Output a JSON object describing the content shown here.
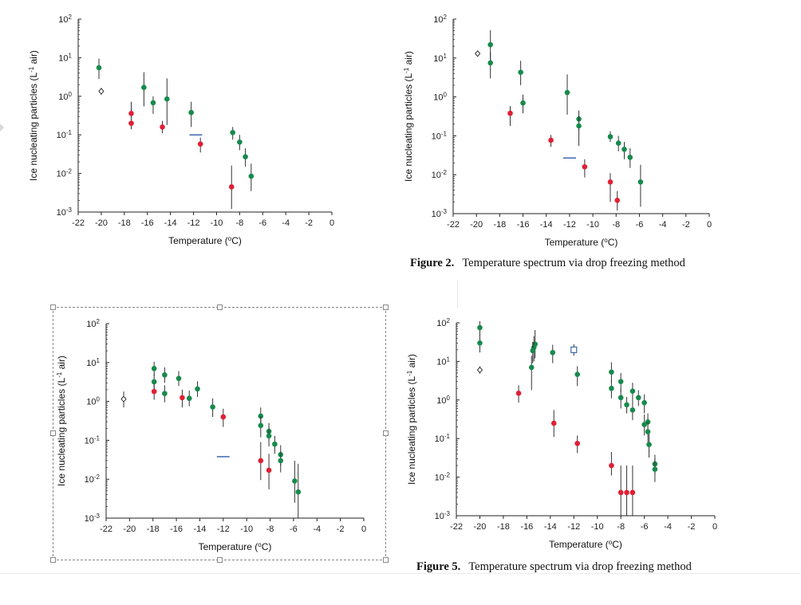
{
  "captions": {
    "fig2": {
      "num": "Figure 2.",
      "text": "Temperature spectrum via drop freezing method"
    },
    "fig5": {
      "num": "Figure 5.",
      "text": "Temperature spectrum via drop freezing method"
    }
  },
  "colors": {
    "green": "#178a4c",
    "red": "#e01f34",
    "blue": "#2b5aa8",
    "open": "#333333",
    "axis": "#222222"
  },
  "chart_data": [
    {
      "type": "scatter",
      "id": "chart-top-left",
      "xlabel": "Temperature (oC)",
      "ylabel": "Ice nucleating particles (L-1 air)",
      "xlim": [
        -22,
        0
      ],
      "ylim": [
        0.001,
        100
      ],
      "yscale": "log",
      "xticks": [
        -22,
        -20,
        -18,
        -16,
        -14,
        -12,
        -10,
        -8,
        -6,
        -4,
        -2,
        0
      ],
      "yticks": [
        {
          "exp": "2",
          "value": 100
        },
        {
          "exp": "1",
          "value": 10
        },
        {
          "exp": "0",
          "value": 1
        },
        {
          "exp": "-1",
          "value": 0.1
        },
        {
          "exp": "-2",
          "value": 0.01
        },
        {
          "exp": "-3",
          "value": 0.001
        }
      ],
      "series": [
        {
          "name": "green",
          "color": "green",
          "marker": "dot",
          "points": [
            {
              "x": -20.2,
              "y": 5.5,
              "lo": 2.8,
              "hi": 9.5
            },
            {
              "x": -16.3,
              "y": 1.7,
              "lo": 0.55,
              "hi": 4.2
            },
            {
              "x": -15.5,
              "y": 0.68,
              "lo": 0.35,
              "hi": 1.0
            },
            {
              "x": -14.3,
              "y": 0.85,
              "lo": 0.18,
              "hi": 2.9
            },
            {
              "x": -12.2,
              "y": 0.38,
              "lo": 0.16,
              "hi": 0.72
            },
            {
              "x": -8.6,
              "y": 0.115,
              "lo": 0.075,
              "hi": 0.16
            },
            {
              "x": -8.0,
              "y": 0.065,
              "lo": 0.04,
              "hi": 0.1
            },
            {
              "x": -7.5,
              "y": 0.027,
              "lo": 0.015,
              "hi": 0.045
            },
            {
              "x": -7.0,
              "y": 0.0085,
              "lo": 0.0035,
              "hi": 0.018
            }
          ]
        },
        {
          "name": "red",
          "color": "red",
          "marker": "dot",
          "points": [
            {
              "x": -17.4,
              "y": 0.36,
              "lo": 0.14,
              "hi": 0.72
            },
            {
              "x": -17.4,
              "y": 0.2,
              "lo": 0.14,
              "hi": 0.28
            },
            {
              "x": -14.7,
              "y": 0.16,
              "lo": 0.11,
              "hi": 0.23
            },
            {
              "x": -11.4,
              "y": 0.058,
              "lo": 0.035,
              "hi": 0.085
            },
            {
              "x": -8.7,
              "y": 0.0045,
              "lo": 0.0012,
              "hi": 0.016
            }
          ]
        },
        {
          "name": "open",
          "color": "open",
          "marker": "open-diamond",
          "points": [
            {
              "x": -20.0,
              "y": 1.35,
              "lo": 1.1,
              "hi": 1.65
            }
          ]
        },
        {
          "name": "blue",
          "color": "blue",
          "marker": "dash",
          "points": [
            {
              "x": -11.8,
              "y": 0.1
            }
          ]
        }
      ]
    },
    {
      "type": "scatter",
      "id": "chart-top-right",
      "xlabel": "Temperature (oC)",
      "ylabel": "Ice nucleating particles (L-1 air)",
      "xlim": [
        -22,
        0
      ],
      "ylim": [
        0.001,
        100
      ],
      "yscale": "log",
      "xticks": [
        -22,
        -20,
        -18,
        -16,
        -14,
        -12,
        -10,
        -8,
        -6,
        -4,
        -2,
        0
      ],
      "yticks": [
        {
          "exp": "2",
          "value": 100
        },
        {
          "exp": "1",
          "value": 10
        },
        {
          "exp": "0",
          "value": 1
        },
        {
          "exp": "-1",
          "value": 0.1
        },
        {
          "exp": "-2",
          "value": 0.01
        },
        {
          "exp": "-3",
          "value": 0.001
        }
      ],
      "series": [
        {
          "name": "green",
          "color": "green",
          "marker": "dot",
          "points": [
            {
              "x": -18.8,
              "y": 22,
              "lo": 8,
              "hi": 52
            },
            {
              "x": -18.8,
              "y": 7.5,
              "lo": 3.0,
              "hi": 14
            },
            {
              "x": -16.2,
              "y": 4.3,
              "lo": 2.0,
              "hi": 8.5
            },
            {
              "x": -16.0,
              "y": 0.7,
              "lo": 0.38,
              "hi": 1.15
            },
            {
              "x": -12.2,
              "y": 1.3,
              "lo": 0.35,
              "hi": 3.8
            },
            {
              "x": -11.2,
              "y": 0.27,
              "lo": 0.13,
              "hi": 0.45
            },
            {
              "x": -11.2,
              "y": 0.18,
              "lo": 0.055,
              "hi": 0.33
            },
            {
              "x": -8.5,
              "y": 0.095,
              "lo": 0.07,
              "hi": 0.13
            },
            {
              "x": -7.8,
              "y": 0.065,
              "lo": 0.04,
              "hi": 0.1
            },
            {
              "x": -7.3,
              "y": 0.045,
              "lo": 0.025,
              "hi": 0.07
            },
            {
              "x": -6.8,
              "y": 0.028,
              "lo": 0.015,
              "hi": 0.048
            },
            {
              "x": -5.9,
              "y": 0.0065,
              "lo": 0.0015,
              "hi": 0.018
            }
          ]
        },
        {
          "name": "red",
          "color": "red",
          "marker": "dot",
          "points": [
            {
              "x": -17.1,
              "y": 0.38,
              "lo": 0.18,
              "hi": 0.58
            },
            {
              "x": -13.6,
              "y": 0.077,
              "lo": 0.052,
              "hi": 0.105
            },
            {
              "x": -10.7,
              "y": 0.016,
              "lo": 0.0085,
              "hi": 0.025
            },
            {
              "x": -8.5,
              "y": 0.0065,
              "lo": 0.002,
              "hi": 0.011
            },
            {
              "x": -7.9,
              "y": 0.0022,
              "lo": 0.0012,
              "hi": 0.0038
            }
          ]
        },
        {
          "name": "open",
          "color": "open",
          "marker": "open-diamond",
          "points": [
            {
              "x": -19.9,
              "y": 13
            }
          ]
        },
        {
          "name": "blue",
          "color": "blue",
          "marker": "dash",
          "points": [
            {
              "x": -12.0,
              "y": 0.027
            }
          ]
        }
      ]
    },
    {
      "type": "scatter",
      "id": "chart-bottom-left",
      "xlabel": "Temperature (oC)",
      "ylabel": "Ice nucleating particles (L-1 air)",
      "xlim": [
        -22,
        0
      ],
      "ylim": [
        0.001,
        100
      ],
      "yscale": "log",
      "xticks": [
        -22,
        -20,
        -18,
        -16,
        -14,
        -12,
        -10,
        -8,
        -6,
        -4,
        -2,
        0
      ],
      "yticks": [
        {
          "exp": "2",
          "value": 100
        },
        {
          "exp": "1",
          "value": 10
        },
        {
          "exp": "0",
          "value": 1
        },
        {
          "exp": "-1",
          "value": 0.1
        },
        {
          "exp": "-2",
          "value": 0.01
        },
        {
          "exp": "-3",
          "value": 0.001
        }
      ],
      "series": [
        {
          "name": "green",
          "color": "green",
          "marker": "dot",
          "points": [
            {
              "x": -17.9,
              "y": 7.0,
              "lo": 4.5,
              "hi": 10.5
            },
            {
              "x": -17.9,
              "y": 3.2,
              "lo": 1.8,
              "hi": 5.0
            },
            {
              "x": -17.0,
              "y": 4.8,
              "lo": 3.0,
              "hi": 7.5
            },
            {
              "x": -17.0,
              "y": 1.6,
              "lo": 0.95,
              "hi": 2.6
            },
            {
              "x": -15.8,
              "y": 3.9,
              "lo": 2.5,
              "hi": 6.0
            },
            {
              "x": -14.9,
              "y": 1.2,
              "lo": 0.75,
              "hi": 1.9
            },
            {
              "x": -14.2,
              "y": 2.1,
              "lo": 1.3,
              "hi": 3.3
            },
            {
              "x": -12.9,
              "y": 0.72,
              "lo": 0.4,
              "hi": 1.2
            },
            {
              "x": -8.8,
              "y": 0.42,
              "lo": 0.25,
              "hi": 0.7
            },
            {
              "x": -8.8,
              "y": 0.24,
              "lo": 0.12,
              "hi": 0.42
            },
            {
              "x": -8.1,
              "y": 0.17,
              "lo": 0.1,
              "hi": 0.28
            },
            {
              "x": -8.1,
              "y": 0.13,
              "lo": 0.07,
              "hi": 0.22
            },
            {
              "x": -7.6,
              "y": 0.08,
              "lo": 0.045,
              "hi": 0.13
            },
            {
              "x": -7.1,
              "y": 0.043,
              "lo": 0.022,
              "hi": 0.075
            },
            {
              "x": -7.1,
              "y": 0.03,
              "lo": 0.015,
              "hi": 0.05
            },
            {
              "x": -5.9,
              "y": 0.009,
              "lo": 0.0025,
              "hi": 0.03
            },
            {
              "x": -5.6,
              "y": 0.0047,
              "lo": 0.001,
              "hi": 0.025
            }
          ]
        },
        {
          "name": "red",
          "color": "red",
          "marker": "dot",
          "points": [
            {
              "x": -17.9,
              "y": 1.8,
              "lo": 1.1,
              "hi": 2.9
            },
            {
              "x": -15.5,
              "y": 1.25,
              "lo": 0.7,
              "hi": 2.0
            },
            {
              "x": -12.0,
              "y": 0.4,
              "lo": 0.22,
              "hi": 0.65
            },
            {
              "x": -8.8,
              "y": 0.03,
              "lo": 0.0095,
              "hi": 0.09
            },
            {
              "x": -8.1,
              "y": 0.017,
              "lo": 0.0055,
              "hi": 0.045
            }
          ]
        },
        {
          "name": "open",
          "color": "open",
          "marker": "open-diamond",
          "points": [
            {
              "x": -20.5,
              "y": 1.15,
              "lo": 0.7,
              "hi": 1.8
            }
          ]
        },
        {
          "name": "blue",
          "color": "blue",
          "marker": "dash",
          "points": [
            {
              "x": -12.0,
              "y": 0.038
            }
          ]
        }
      ]
    },
    {
      "type": "scatter",
      "id": "chart-bottom-right",
      "xlabel": "Temperature (oC)",
      "ylabel": "Ice nucleating particles (L-1 air)",
      "xlim": [
        -22,
        0
      ],
      "ylim": [
        0.001,
        100
      ],
      "yscale": "log",
      "xticks": [
        -22,
        -20,
        -18,
        -16,
        -14,
        -12,
        -10,
        -8,
        -6,
        -4,
        -2,
        0
      ],
      "yticks": [
        {
          "exp": "2",
          "value": 100
        },
        {
          "exp": "1",
          "value": 10
        },
        {
          "exp": "0",
          "value": 1
        },
        {
          "exp": "-1",
          "value": 0.1
        },
        {
          "exp": "-2",
          "value": 0.01
        },
        {
          "exp": "-3",
          "value": 0.001
        }
      ],
      "series": [
        {
          "name": "green",
          "color": "green",
          "marker": "dot",
          "points": [
            {
              "x": -20.0,
              "y": 75,
              "lo": 45,
              "hi": 110
            },
            {
              "x": -20.0,
              "y": 30,
              "lo": 17,
              "hi": 50
            },
            {
              "x": -15.3,
              "y": 28,
              "lo": 12,
              "hi": 65
            },
            {
              "x": -15.4,
              "y": 23,
              "lo": 10,
              "hi": 45
            },
            {
              "x": -15.5,
              "y": 19,
              "lo": 9,
              "hi": 32
            },
            {
              "x": -15.6,
              "y": 7,
              "lo": 1.8,
              "hi": 14
            },
            {
              "x": -13.8,
              "y": 17,
              "lo": 9,
              "hi": 27
            },
            {
              "x": -11.7,
              "y": 4.6,
              "lo": 2.3,
              "hi": 7.5
            },
            {
              "x": -8.8,
              "y": 5.3,
              "lo": 2.8,
              "hi": 9.5
            },
            {
              "x": -8.8,
              "y": 2.0,
              "lo": 1.1,
              "hi": 3.3
            },
            {
              "x": -8.0,
              "y": 3.0,
              "lo": 1.6,
              "hi": 5.0
            },
            {
              "x": -8.0,
              "y": 1.15,
              "lo": 0.6,
              "hi": 1.9
            },
            {
              "x": -7.5,
              "y": 0.75,
              "lo": 0.45,
              "hi": 1.2
            },
            {
              "x": -7.0,
              "y": 1.7,
              "lo": 0.95,
              "hi": 2.8
            },
            {
              "x": -7.0,
              "y": 0.55,
              "lo": 0.3,
              "hi": 0.95
            },
            {
              "x": -6.5,
              "y": 1.15,
              "lo": 0.7,
              "hi": 1.8
            },
            {
              "x": -6.0,
              "y": 0.85,
              "lo": 0.45,
              "hi": 1.4
            },
            {
              "x": -6.0,
              "y": 0.23,
              "lo": 0.12,
              "hi": 0.42
            },
            {
              "x": -5.7,
              "y": 0.27,
              "lo": 0.15,
              "hi": 0.45
            },
            {
              "x": -5.7,
              "y": 0.15,
              "lo": 0.08,
              "hi": 0.27
            },
            {
              "x": -5.6,
              "y": 0.07,
              "lo": 0.032,
              "hi": 0.13
            },
            {
              "x": -5.1,
              "y": 0.022,
              "lo": 0.012,
              "hi": 0.038
            },
            {
              "x": -5.1,
              "y": 0.016,
              "lo": 0.0075,
              "hi": 0.03
            }
          ]
        },
        {
          "name": "red",
          "color": "red",
          "marker": "dot",
          "points": [
            {
              "x": -16.7,
              "y": 1.5,
              "lo": 0.85,
              "hi": 2.4
            },
            {
              "x": -13.7,
              "y": 0.25,
              "lo": 0.11,
              "hi": 0.55
            },
            {
              "x": -11.7,
              "y": 0.075,
              "lo": 0.042,
              "hi": 0.12
            },
            {
              "x": -8.8,
              "y": 0.02,
              "lo": 0.011,
              "hi": 0.045
            },
            {
              "x": -8.0,
              "y": 0.004,
              "lo": 0.001,
              "hi": 0.02
            },
            {
              "x": -7.5,
              "y": 0.004,
              "lo": 0.001,
              "hi": 0.02
            },
            {
              "x": -7.0,
              "y": 0.004,
              "lo": 0.001,
              "hi": 0.02
            }
          ]
        },
        {
          "name": "open",
          "color": "open",
          "marker": "open-diamond",
          "points": [
            {
              "x": -20.0,
              "y": 6.0,
              "lo": 4.8,
              "hi": 7.5
            }
          ]
        },
        {
          "name": "blue",
          "color": "blue",
          "marker": "open-square",
          "points": [
            {
              "x": -12.0,
              "y": 20,
              "lo": 14,
              "hi": 28
            }
          ]
        }
      ]
    }
  ]
}
